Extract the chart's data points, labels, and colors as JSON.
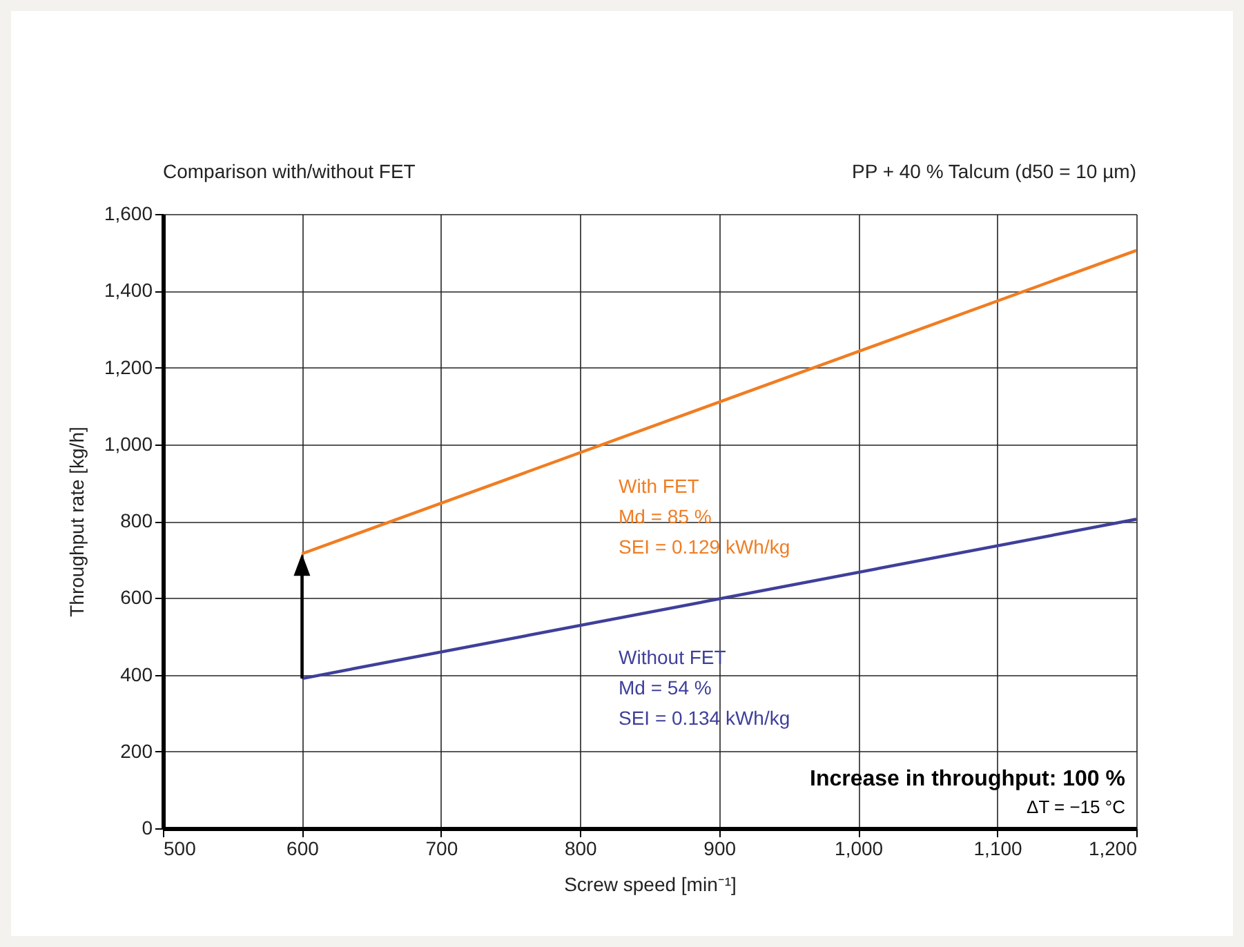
{
  "chart_data": {
    "type": "line",
    "title": "Comparison with/without FET",
    "subtitle": "PP + 40 % Talcum (d50 = 10 µm)",
    "xlabel": "Screw speed [min⁻¹]",
    "ylabel": "Throughput rate [kg/h]",
    "x": [
      600,
      1200
    ],
    "series": [
      {
        "name": "With FET",
        "color": "#f07d22",
        "values": [
          715,
          1505
        ]
      },
      {
        "name": "Without FET",
        "color": "#3f3f9a",
        "values": [
          390,
          805
        ]
      }
    ],
    "annotations": [
      "Md = 85 %",
      "SEI = 0.129 kWh/kg",
      "Md = 54 %",
      "SEI = 0.134 kWh/kg",
      "Increase in throughput: 100 %",
      "ΔT = −15 °C"
    ],
    "xlim": [
      500,
      1200
    ],
    "xticks": [
      500,
      600,
      700,
      800,
      900,
      {
        "value": 1000,
        "label": "1,000"
      },
      {
        "value": 1100,
        "label": "1,100"
      },
      {
        "value": 1200,
        "label": "1,200"
      }
    ],
    "ylim": [
      0,
      1600
    ],
    "yticks": [
      0,
      200,
      400,
      600,
      800,
      {
        "value": 1000,
        "label": "1,000"
      },
      {
        "value": 1200,
        "label": "1,200"
      },
      {
        "value": 1400,
        "label": "1,400"
      },
      {
        "value": 1600,
        "label": "1,600"
      }
    ],
    "grid": true,
    "legend": false,
    "marker": "none",
    "line_style": "solid"
  }
}
